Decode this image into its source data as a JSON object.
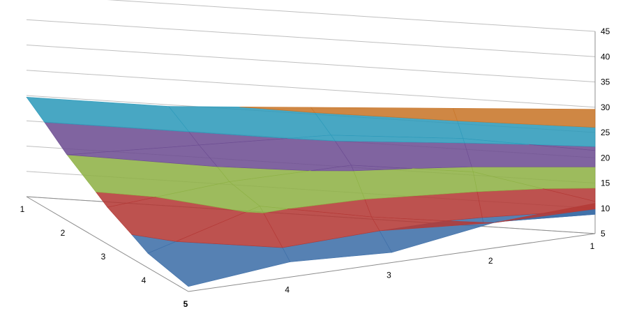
{
  "chart_data": {
    "type": "surface-3d",
    "x_axis": {
      "ticks": [
        "1",
        "2",
        "3",
        "4",
        "5"
      ]
    },
    "depth_axis": {
      "ticks": [
        "1",
        "2",
        "3",
        "4",
        "5"
      ]
    },
    "z_axis": {
      "ticks": [
        "5",
        "10",
        "15",
        "20",
        "25",
        "30",
        "35",
        "40",
        "45"
      ],
      "range": [
        5,
        45
      ]
    },
    "grid": true,
    "legend": "none",
    "band_colors": [
      {
        "min": 5,
        "max": 10,
        "color": "#3f6fa8"
      },
      {
        "min": 10,
        "max": 15,
        "color": "#b43a37"
      },
      {
        "min": 15,
        "max": 20,
        "color": "#8fb247"
      },
      {
        "min": 20,
        "max": 25,
        "color": "#6e4f93"
      },
      {
        "min": 25,
        "max": 30,
        "color": "#2f9bbb"
      },
      {
        "min": 30,
        "max": 35,
        "color": "#c8762a"
      },
      {
        "min": 35,
        "max": 40,
        "color": "#6a86b5"
      },
      {
        "min": 40,
        "max": 45,
        "color": "#c96a68"
      }
    ],
    "z_values": [
      [
        29,
        29,
        31,
        33,
        35
      ],
      [
        20,
        23,
        26,
        26,
        24
      ],
      [
        13,
        18,
        21,
        19,
        12
      ],
      [
        8,
        16,
        12,
        9,
        9
      ],
      [
        6,
        8,
        7,
        10,
        11
      ]
    ]
  }
}
